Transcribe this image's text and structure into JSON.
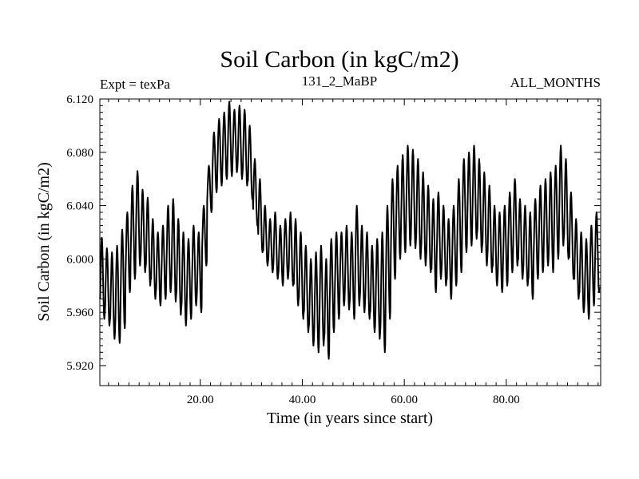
{
  "chart_data": {
    "type": "line",
    "title": "Soil Carbon (in kgC/m2)",
    "subtitle_left": "Expt = texPa",
    "subtitle_center": "131_2_MaBP",
    "subtitle_right": "ALL_MONTHS",
    "xlabel": "Time (in years since start)",
    "ylabel": "Soil Carbon (in kgC/m2)",
    "xlim": [
      0.3,
      98.5
    ],
    "ylim": [
      5.905,
      6.12
    ],
    "xticks": [
      20,
      40,
      60,
      80
    ],
    "xtick_labels": [
      "20.00",
      "40.00",
      "60.00",
      "80.00"
    ],
    "yticks": [
      5.92,
      5.96,
      6.0,
      6.04,
      6.08,
      6.12
    ],
    "ytick_labels": [
      "5.920",
      "5.960",
      "6.000",
      "6.040",
      "6.080",
      "6.120"
    ],
    "series": [
      {
        "name": "Soil Carbon",
        "description": "monthly values; each year oscillates seasonally between the annual max and min",
        "years": [
          1,
          2,
          3,
          4,
          5,
          6,
          7,
          8,
          9,
          10,
          11,
          12,
          13,
          14,
          15,
          16,
          17,
          18,
          19,
          20,
          21,
          22,
          23,
          24,
          25,
          26,
          27,
          28,
          29,
          30,
          31,
          32,
          33,
          34,
          35,
          36,
          37,
          38,
          39,
          40,
          41,
          42,
          43,
          44,
          45,
          46,
          47,
          48,
          49,
          50,
          51,
          52,
          53,
          54,
          55,
          56,
          57,
          58,
          59,
          60,
          61,
          62,
          63,
          64,
          65,
          66,
          67,
          68,
          69,
          70,
          71,
          72,
          73,
          74,
          75,
          76,
          77,
          78,
          79,
          80,
          81,
          82,
          83,
          84,
          85,
          86,
          87,
          88,
          89,
          90,
          91,
          92,
          93,
          94,
          95,
          96,
          97,
          98
        ],
        "annual_max": [
          6.016,
          6.008,
          6.005,
          6.01,
          6.022,
          6.035,
          6.055,
          6.066,
          6.052,
          6.046,
          6.03,
          6.02,
          6.025,
          6.04,
          6.045,
          6.03,
          6.02,
          6.015,
          6.025,
          6.02,
          6.04,
          6.07,
          6.095,
          6.105,
          6.11,
          6.118,
          6.112,
          6.115,
          6.112,
          6.1,
          6.075,
          6.06,
          6.04,
          6.03,
          6.035,
          6.025,
          6.03,
          6.035,
          6.03,
          6.02,
          6.01,
          6.0,
          6.005,
          6.01,
          6.0,
          6.015,
          6.02,
          6.02,
          6.025,
          6.02,
          6.04,
          6.025,
          6.02,
          6.01,
          6.015,
          6.02,
          6.04,
          6.06,
          6.07,
          6.078,
          6.085,
          6.082,
          6.075,
          6.065,
          6.055,
          6.045,
          6.05,
          6.04,
          6.03,
          6.04,
          6.06,
          6.075,
          6.08,
          6.085,
          6.075,
          6.065,
          6.055,
          6.04,
          6.035,
          6.04,
          6.05,
          6.06,
          6.045,
          6.04,
          6.035,
          6.045,
          6.055,
          6.06,
          6.065,
          6.07,
          6.085,
          6.075,
          6.05,
          6.03,
          6.02,
          6.015,
          6.025,
          6.035
        ],
        "annual_min": [
          5.955,
          5.95,
          5.94,
          5.937,
          5.948,
          5.975,
          5.985,
          5.995,
          5.99,
          5.98,
          5.97,
          5.965,
          5.97,
          5.975,
          5.968,
          5.958,
          5.95,
          5.955,
          5.965,
          5.96,
          5.995,
          6.035,
          6.05,
          6.055,
          6.06,
          6.062,
          6.065,
          6.06,
          6.055,
          6.045,
          6.025,
          6.005,
          5.995,
          5.99,
          5.985,
          5.98,
          5.985,
          5.98,
          5.965,
          5.955,
          5.945,
          5.935,
          5.93,
          5.935,
          5.925,
          5.945,
          5.955,
          5.965,
          5.962,
          5.955,
          5.965,
          5.96,
          5.955,
          5.945,
          5.94,
          5.93,
          5.955,
          5.985,
          6.0,
          6.005,
          6.01,
          6.008,
          6.0,
          5.995,
          5.99,
          5.975,
          5.985,
          5.98,
          5.97,
          5.98,
          5.99,
          6.005,
          6.01,
          6.015,
          6.005,
          5.995,
          5.99,
          5.98,
          5.975,
          5.98,
          5.99,
          5.995,
          5.985,
          5.98,
          5.97,
          5.985,
          5.99,
          5.995,
          5.99,
          6.0,
          6.01,
          6.0,
          5.985,
          5.97,
          5.96,
          5.955,
          5.965,
          5.975
        ]
      }
    ]
  }
}
